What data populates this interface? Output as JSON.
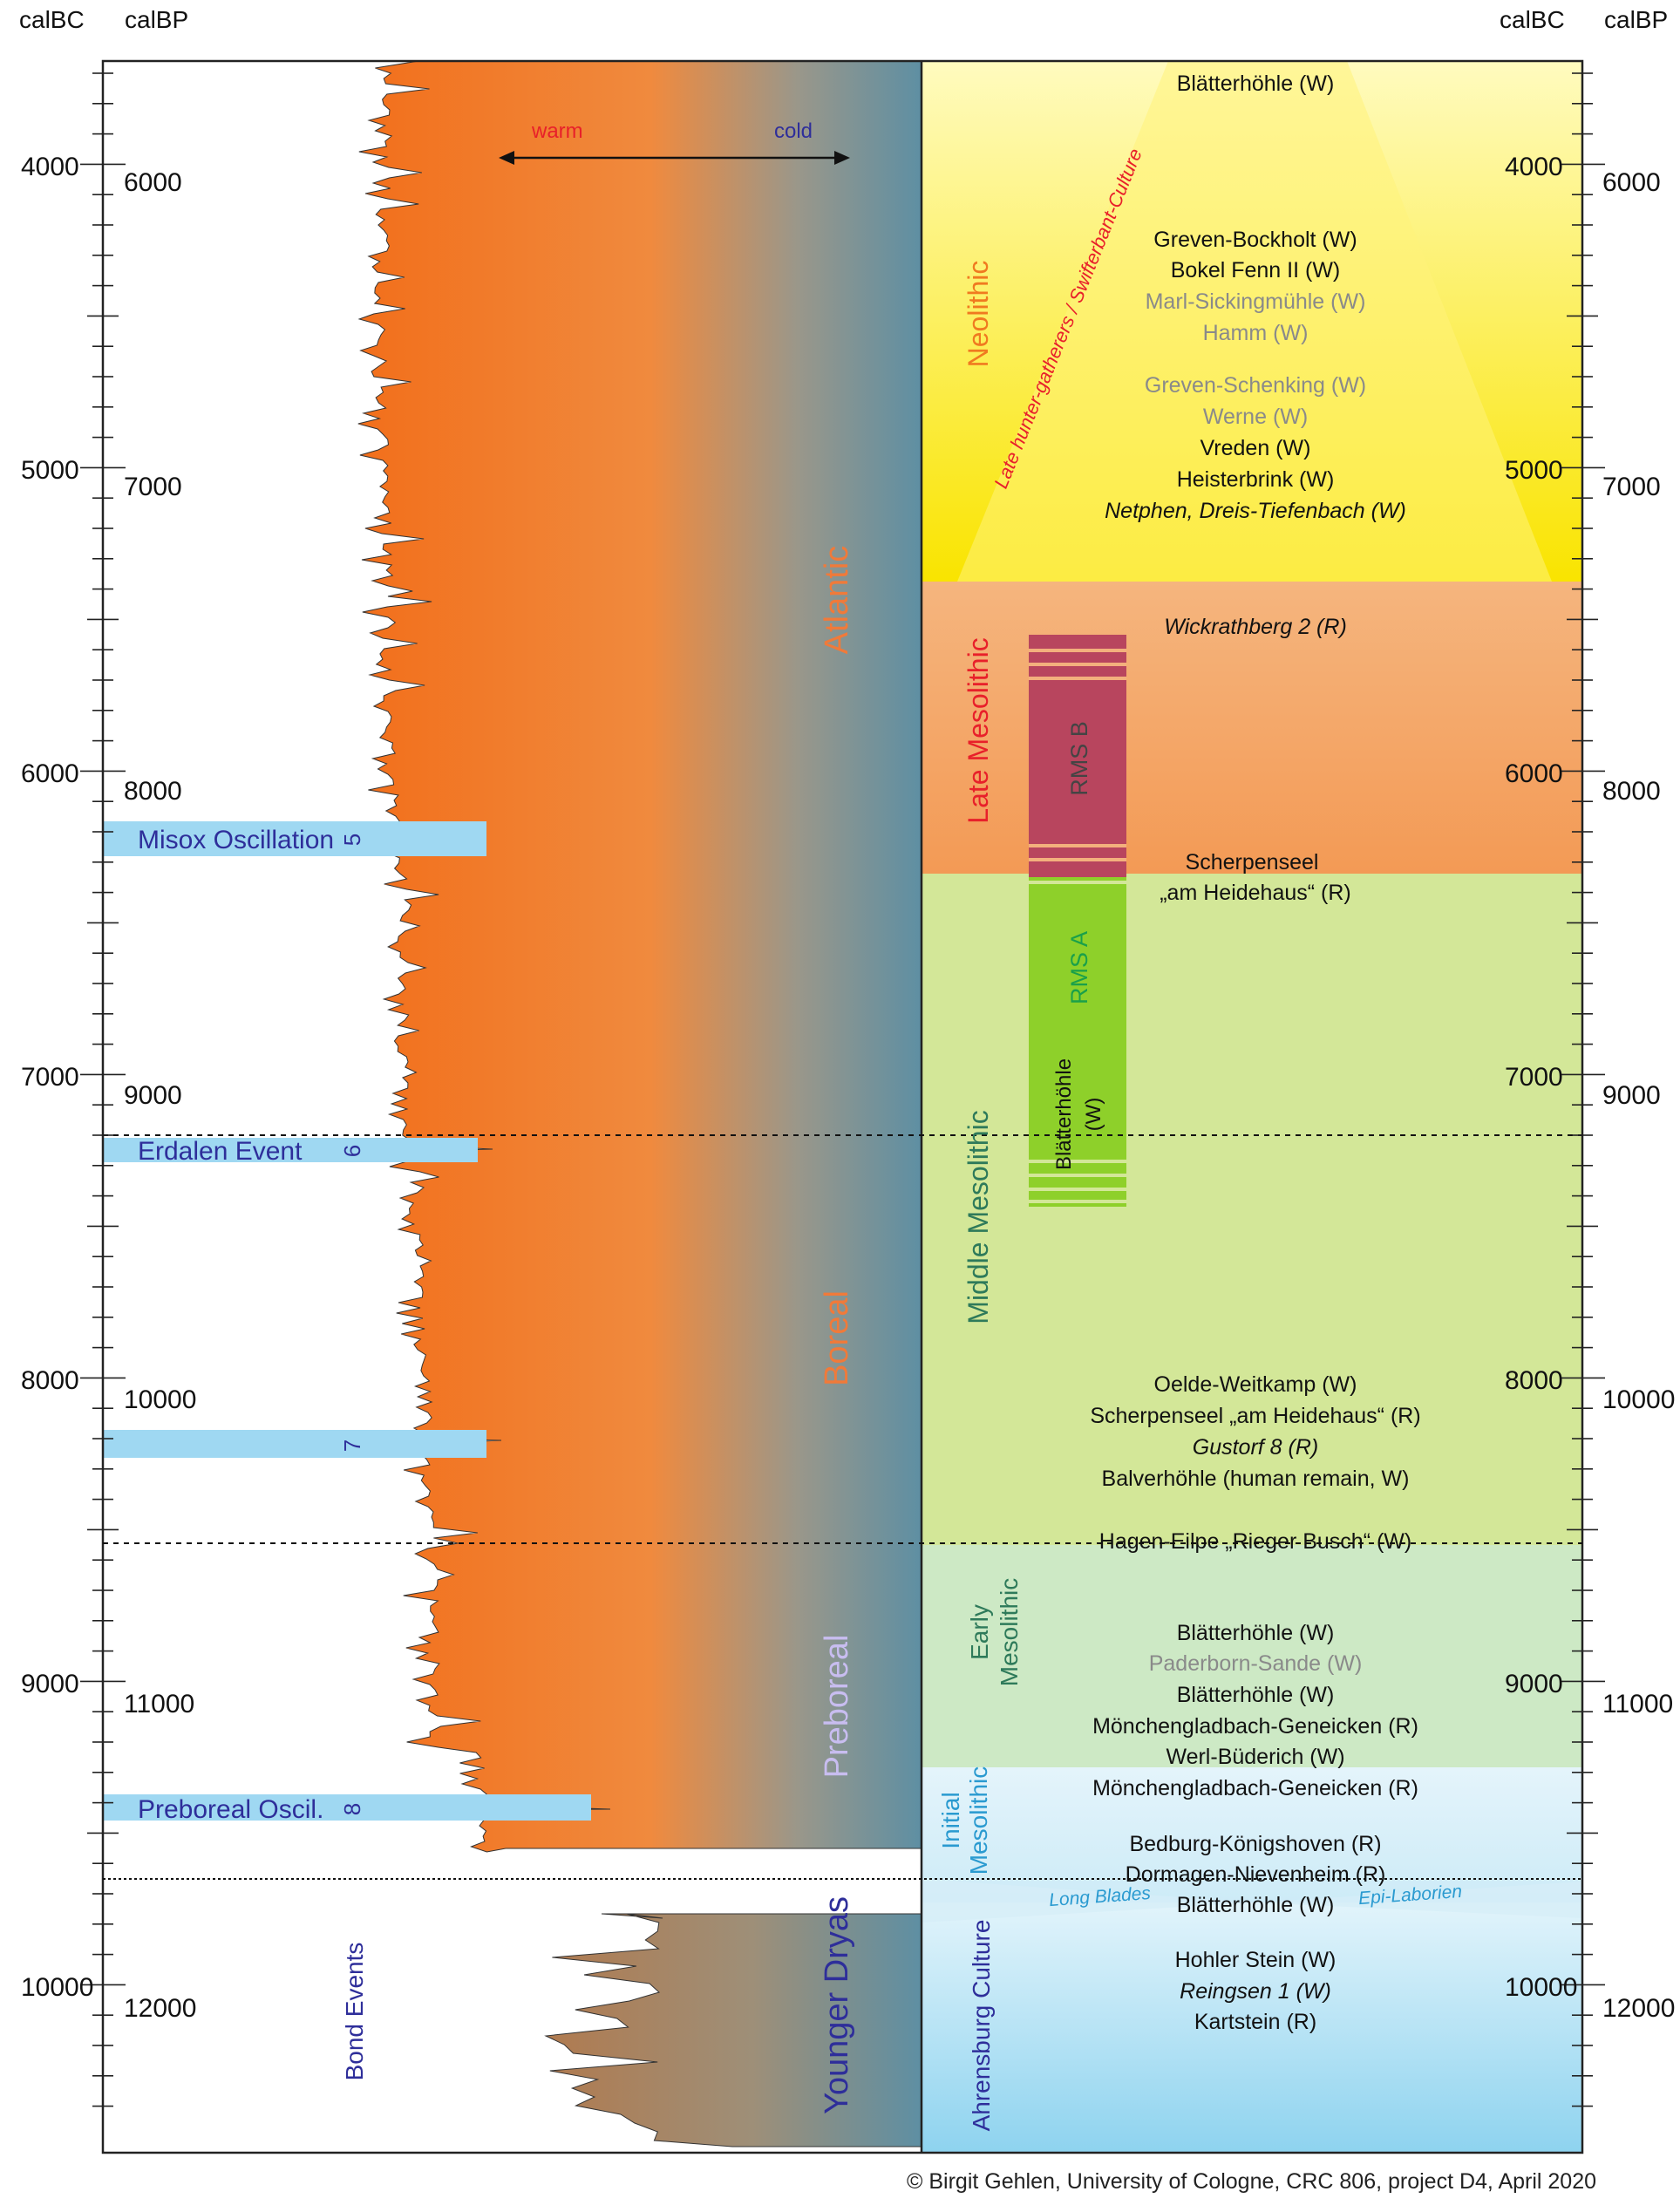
{
  "headers": {
    "calbc_left": "calBC",
    "calbp_left": "calBP",
    "calbc_right": "calBC",
    "calbp_right": "calBP"
  },
  "axis": {
    "calbc_ticks": [
      "4000",
      "5000",
      "6000",
      "7000",
      "8000",
      "9000",
      "10000"
    ],
    "calbp_ticks": [
      "6000",
      "7000",
      "8000",
      "9000",
      "10000",
      "11000",
      "12000"
    ]
  },
  "climate": {
    "warm": "warm",
    "cold": "cold",
    "colors": {
      "warm": "#f26f1b",
      "cold": "#5e8fa3",
      "younger_dryas": "#b07a4f"
    }
  },
  "periods": [
    {
      "id": "atlantic",
      "label": "Atlantic",
      "color": "#f07a3a"
    },
    {
      "id": "boreal",
      "label": "Boreal",
      "color": "#f07a3a"
    },
    {
      "id": "preboreal",
      "label": "Preboreal",
      "color": "#c8bdf0"
    },
    {
      "id": "younger-dryas",
      "label": "Younger Dryas",
      "color": "#2e2e9a"
    }
  ],
  "bond_events": {
    "label": "Bond Events",
    "items": [
      {
        "name": "Misox Oscillation",
        "number": "5"
      },
      {
        "name": "Erdalen Event",
        "number": "6"
      },
      {
        "name": "",
        "number": "7"
      },
      {
        "name": "Preboreal Oscil.",
        "number": "8"
      }
    ]
  },
  "cultures": [
    {
      "id": "neolithic",
      "label": "Neolithic",
      "color": "#f07a20"
    },
    {
      "id": "late-mesolithic",
      "label": "Late Mesolithic",
      "color": "#e8202a"
    },
    {
      "id": "middle-mesolithic",
      "label": "Middle Mesolithic",
      "color": "#2e7a5a"
    },
    {
      "id": "early-mesolithic",
      "label": "Early Mesolithic",
      "color": "#2e7a5a"
    },
    {
      "id": "initial-mesolithic",
      "label": "Initial Mesolithic",
      "color": "#2a9ad0"
    },
    {
      "id": "ahrensburg",
      "label": "Ahrensburg Culture",
      "color": "#2e2e9a"
    }
  ],
  "late_hunter_gatherers": "Late hunter-gatherers / Swifterbant-Culture",
  "rms": {
    "b": "RMS B",
    "a": "RMS A",
    "blatterhohle": "Blätterhöhle",
    "blatterhohle_w": "(W)"
  },
  "long_blades": "Long Blades",
  "epi_laborien": "Epi-Laborien",
  "sites": [
    {
      "text": "Blätterhöhle (W)",
      "color": "#111",
      "italic": false
    },
    {
      "text": "Greven-Bockholt (W)",
      "color": "#111",
      "italic": false
    },
    {
      "text": "Bokel Fenn II (W)",
      "color": "#111",
      "italic": false
    },
    {
      "text": "Marl-Sickingmühle (W)",
      "color": "#8a8a8a",
      "italic": false
    },
    {
      "text": "Hamm (W)",
      "color": "#8a8a8a",
      "italic": false
    },
    {
      "text": "Greven-Schenking (W)",
      "color": "#8a8a8a",
      "italic": false
    },
    {
      "text": "Werne (W)",
      "color": "#8a8a8a",
      "italic": false
    },
    {
      "text": "Vreden (W)",
      "color": "#111",
      "italic": false
    },
    {
      "text": "Heisterbrink (W)",
      "color": "#111",
      "italic": false
    },
    {
      "text": "Netphen, Dreis-Tiefenbach (W)",
      "color": "#111",
      "italic": true
    },
    {
      "text": "Wickrathberg 2 (R)",
      "color": "#111",
      "italic": true
    },
    {
      "text": "Scherpenseel",
      "color": "#111",
      "italic": false
    },
    {
      "text": "„am Heidehaus“ (R)",
      "color": "#111",
      "italic": false
    },
    {
      "text": "Oelde-Weitkamp (W)",
      "color": "#111",
      "italic": false
    },
    {
      "text": "Scherpenseel „am Heidehaus“ (R)",
      "color": "#111",
      "italic": false
    },
    {
      "text": "Gustorf 8 (R)",
      "color": "#111",
      "italic": true
    },
    {
      "text": "Balverhöhle (human remain, W)",
      "color": "#111",
      "italic": false
    },
    {
      "text": "Hagen-Eilpe „Rieger Busch“ (W)",
      "color": "#111",
      "italic": false
    },
    {
      "text": "Blätterhöhle (W)",
      "color": "#111",
      "italic": false
    },
    {
      "text": "Paderborn-Sande (W)",
      "color": "#8a8a8a",
      "italic": false
    },
    {
      "text": "Blätterhöhle (W)",
      "color": "#111",
      "italic": false
    },
    {
      "text": "Mönchengladbach-Geneicken (R)",
      "color": "#111",
      "italic": false
    },
    {
      "text": "Werl-Büderich (W)",
      "color": "#111",
      "italic": false
    },
    {
      "text": "Mönchengladbach-Geneicken (R)",
      "color": "#111",
      "italic": false
    },
    {
      "text": "Bedburg-Königshoven (R)",
      "color": "#111",
      "italic": false
    },
    {
      "text": "Dormagen-Nievenheim (R)",
      "color": "#111",
      "italic": false
    },
    {
      "text": "Blätterhöhle (W)",
      "color": "#111",
      "italic": false
    },
    {
      "text": "Hohler Stein (W)",
      "color": "#111",
      "italic": false
    },
    {
      "text": "Reingsen 1 (W)",
      "color": "#111",
      "italic": true
    },
    {
      "text": "Kartstein (R)",
      "color": "#111",
      "italic": false
    }
  ],
  "copyright": "© Birgit Gehlen, University of Cologne, CRC 806, project D4, April 2020"
}
